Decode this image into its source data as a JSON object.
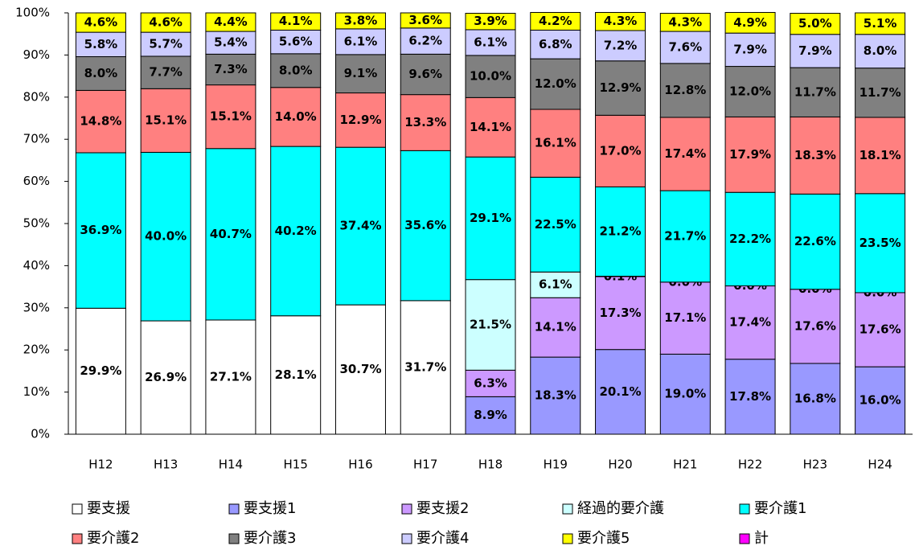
{
  "chart_data": {
    "type": "stacked_bar",
    "categories": [
      "H12",
      "H13",
      "H14",
      "H15",
      "H16",
      "H17",
      "H18",
      "H19",
      "H20",
      "H21",
      "H22",
      "H23",
      "H24"
    ],
    "series": [
      {
        "name": "要支援",
        "color": "#ffffff",
        "values": [
          29.9,
          26.9,
          27.1,
          28.1,
          30.7,
          31.7,
          null,
          null,
          null,
          null,
          null,
          null,
          null
        ],
        "value_labels": [
          "29.9%",
          "26.9%",
          "27.1%",
          "28.1%",
          "30.7%",
          "31.7%",
          null,
          null,
          null,
          null,
          null,
          null,
          null
        ]
      },
      {
        "name": "要支援1",
        "color": "#9999ff",
        "values": [
          null,
          null,
          null,
          null,
          null,
          null,
          8.9,
          18.3,
          20.1,
          19.0,
          17.8,
          16.8,
          16.0
        ],
        "value_labels": [
          null,
          null,
          null,
          null,
          null,
          null,
          "8.9%",
          "18.3%",
          "20.1%",
          "19.0%",
          "17.8%",
          "16.8%",
          "16.0%"
        ]
      },
      {
        "name": "要支援2",
        "color": "#cc99ff",
        "values": [
          null,
          null,
          null,
          null,
          null,
          null,
          6.3,
          14.1,
          17.3,
          17.1,
          17.4,
          17.6,
          17.6
        ],
        "value_labels": [
          null,
          null,
          null,
          null,
          null,
          null,
          "6.3%",
          "14.1%",
          "17.3%",
          "17.1%",
          "17.4%",
          "17.6%",
          "17.6%"
        ]
      },
      {
        "name": "経過的要介護",
        "color": "#ccffff",
        "values": [
          null,
          null,
          null,
          null,
          null,
          null,
          21.5,
          6.1,
          0.1,
          0.0,
          0.0,
          0.0,
          0.0
        ],
        "value_labels": [
          null,
          null,
          null,
          null,
          null,
          null,
          "21.5%",
          "6.1%",
          "0.1%",
          "0.0%",
          "0.0%",
          "0.0%",
          "0.0%"
        ]
      },
      {
        "name": "要介護1",
        "color": "#00ffff",
        "values": [
          36.9,
          40.0,
          40.7,
          40.2,
          37.4,
          35.6,
          29.1,
          22.5,
          21.2,
          21.7,
          22.2,
          22.6,
          23.5
        ],
        "value_labels": [
          "36.9%",
          "40.0%",
          "40.7%",
          "40.2%",
          "37.4%",
          "35.6%",
          "29.1%",
          "22.5%",
          "21.2%",
          "21.7%",
          "22.2%",
          "22.6%",
          "23.5%"
        ]
      },
      {
        "name": "要介護2",
        "color": "#ff8080",
        "values": [
          14.8,
          15.1,
          15.1,
          14.0,
          12.9,
          13.3,
          14.1,
          16.1,
          17.0,
          17.4,
          17.9,
          18.3,
          18.1
        ],
        "value_labels": [
          "14.8%",
          "15.1%",
          "15.1%",
          "14.0%",
          "12.9%",
          "13.3%",
          "14.1%",
          "16.1%",
          "17.0%",
          "17.4%",
          "17.9%",
          "18.3%",
          "18.1%"
        ]
      },
      {
        "name": "要介護3",
        "color": "#808080",
        "values": [
          8.0,
          7.7,
          7.3,
          8.0,
          9.1,
          9.6,
          10.0,
          12.0,
          12.9,
          12.8,
          12.0,
          11.7,
          11.7
        ],
        "value_labels": [
          "8.0%",
          "7.7%",
          "7.3%",
          "8.0%",
          "9.1%",
          "9.6%",
          "10.0%",
          "12.0%",
          "12.9%",
          "12.8%",
          "12.0%",
          "11.7%",
          "11.7%"
        ]
      },
      {
        "name": "要介護4",
        "color": "#ccccff",
        "values": [
          5.8,
          5.7,
          5.4,
          5.6,
          6.1,
          6.2,
          6.1,
          6.8,
          7.2,
          7.6,
          7.9,
          7.9,
          8.0
        ],
        "value_labels": [
          "5.8%",
          "5.7%",
          "5.4%",
          "5.6%",
          "6.1%",
          "6.2%",
          "6.1%",
          "6.8%",
          "7.2%",
          "7.6%",
          "7.9%",
          "7.9%",
          "8.0%"
        ]
      },
      {
        "name": "要介護5",
        "color": "#ffff00",
        "values": [
          4.6,
          4.6,
          4.4,
          4.1,
          3.8,
          3.6,
          3.9,
          4.2,
          4.3,
          4.3,
          4.9,
          5.0,
          5.1
        ],
        "value_labels": [
          "4.6%",
          "4.6%",
          "4.4%",
          "4.1%",
          "3.8%",
          "3.6%",
          "3.9%",
          "4.2%",
          "4.3%",
          "4.3%",
          "4.9%",
          "5.0%",
          "5.1%"
        ]
      },
      {
        "name": "計",
        "color": "#ff00ff",
        "values": [
          null,
          null,
          null,
          null,
          null,
          null,
          null,
          null,
          null,
          null,
          null,
          null,
          null
        ]
      }
    ],
    "ylim": [
      0,
      100
    ],
    "yticks": [
      {
        "value": 0,
        "label": "0%"
      },
      {
        "value": 10,
        "label": "10%"
      },
      {
        "value": 20,
        "label": "20%"
      },
      {
        "value": 30,
        "label": "30%"
      },
      {
        "value": 40,
        "label": "40%"
      },
      {
        "value": 50,
        "label": "50%"
      },
      {
        "value": 60,
        "label": "60%"
      },
      {
        "value": 70,
        "label": "70%"
      },
      {
        "value": 80,
        "label": "80%"
      },
      {
        "value": 90,
        "label": "90%"
      },
      {
        "value": 100,
        "label": "100%"
      }
    ],
    "legend": "bottom"
  }
}
